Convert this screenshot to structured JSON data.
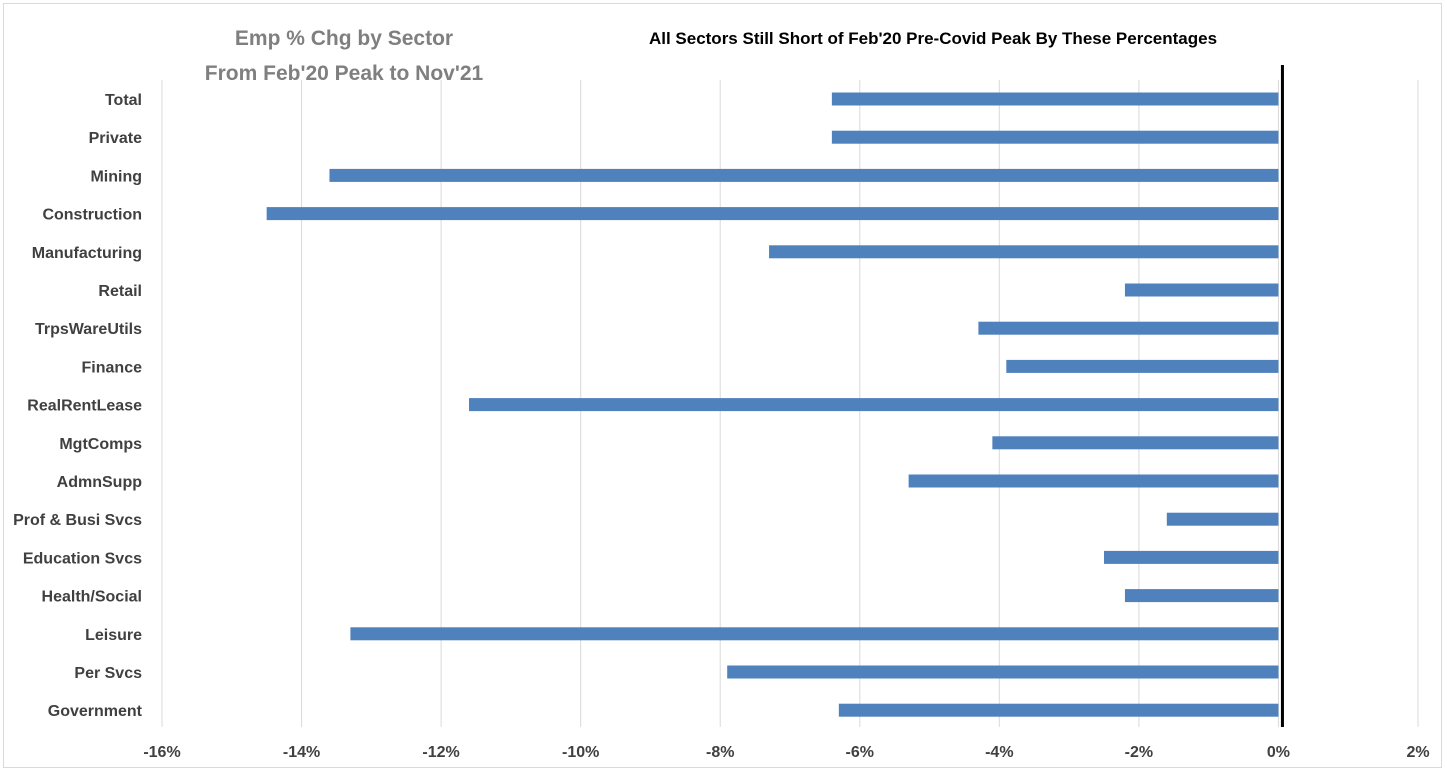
{
  "chart_data": {
    "type": "bar",
    "orientation": "horizontal",
    "title_lines": [
      "Emp % Chg by Sector",
      "From Feb'20 Peak to Nov'21"
    ],
    "subtitle": "All Sectors Still Short of Feb'20 Pre-Covid Peak By These Percentages",
    "categories": [
      "Total",
      "Private",
      "Mining",
      "Construction",
      "Manufacturing",
      "Retail",
      "TrpsWareUtils",
      "Finance",
      "RealRentLease",
      "MgtComps",
      "AdmnSupp",
      "Prof & Busi Svcs",
      "Education Svcs",
      "Health/Social",
      "Leisure",
      "Per Svcs",
      "Government"
    ],
    "values": [
      -6.4,
      -6.4,
      -13.6,
      -14.5,
      -7.3,
      -2.2,
      -4.3,
      -3.9,
      -11.6,
      -4.1,
      -5.3,
      -1.6,
      -2.5,
      -2.2,
      -13.3,
      -7.9,
      -6.3
    ],
    "xlim": [
      -16,
      2
    ],
    "xticks": [
      -16,
      -14,
      -12,
      -10,
      -8,
      -6,
      -4,
      -2,
      0,
      2
    ],
    "xtick_labels": [
      "-16%",
      "-14%",
      "-12%",
      "-10%",
      "-8%",
      "-6%",
      "-4%",
      "-2%",
      "0%",
      "2%"
    ],
    "bar_color": "#4f81bd",
    "grid": "vertical",
    "legend": "none"
  }
}
